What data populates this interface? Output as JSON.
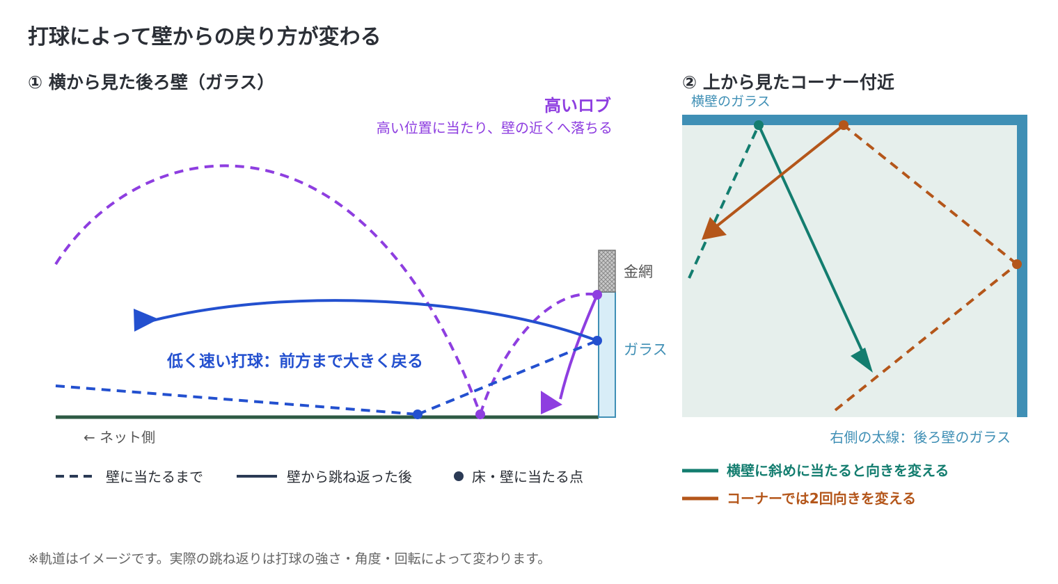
{
  "title": "打球によって壁からの戻り方が変わる",
  "left_panel": {
    "heading": "① 横から見た後ろ壁（ガラス）",
    "lob_title": "高いロブ",
    "lob_desc": "高い位置に当たり、壁の近くへ落ちる",
    "fast_label": "低く速い打球：前方まで大きく戻る",
    "wire_label": "金網",
    "glass_label": "ガラス",
    "net_side": "← ネット側",
    "legend": {
      "before": "壁に当たるまで",
      "after": "壁から跳ね返った後",
      "point": "床・壁に当たる点"
    }
  },
  "right_panel": {
    "heading": "② 上から見たコーナー付近",
    "side_glass": "横壁のガラス",
    "thick_line": "右側の太線：後ろ壁のガラス",
    "legend": {
      "teal": "横壁に斜めに当たると向きを変える",
      "orange": "コーナーでは2回向きを変える"
    }
  },
  "footnote": "※軌道はイメージです。実際の跳ね返りは打球の強さ・角度・回転によって変わります。",
  "colors": {
    "text": "#2b2f36",
    "purple": "#8e3ee0",
    "blue": "#2350cf",
    "teal": "#137d6f",
    "orange": "#b4561a",
    "wall": "#3f8fb5",
    "floor": "#2d5a44",
    "glass_fill": "#d8edf7",
    "court_fill": "#e6efec",
    "gray": "#666666"
  }
}
